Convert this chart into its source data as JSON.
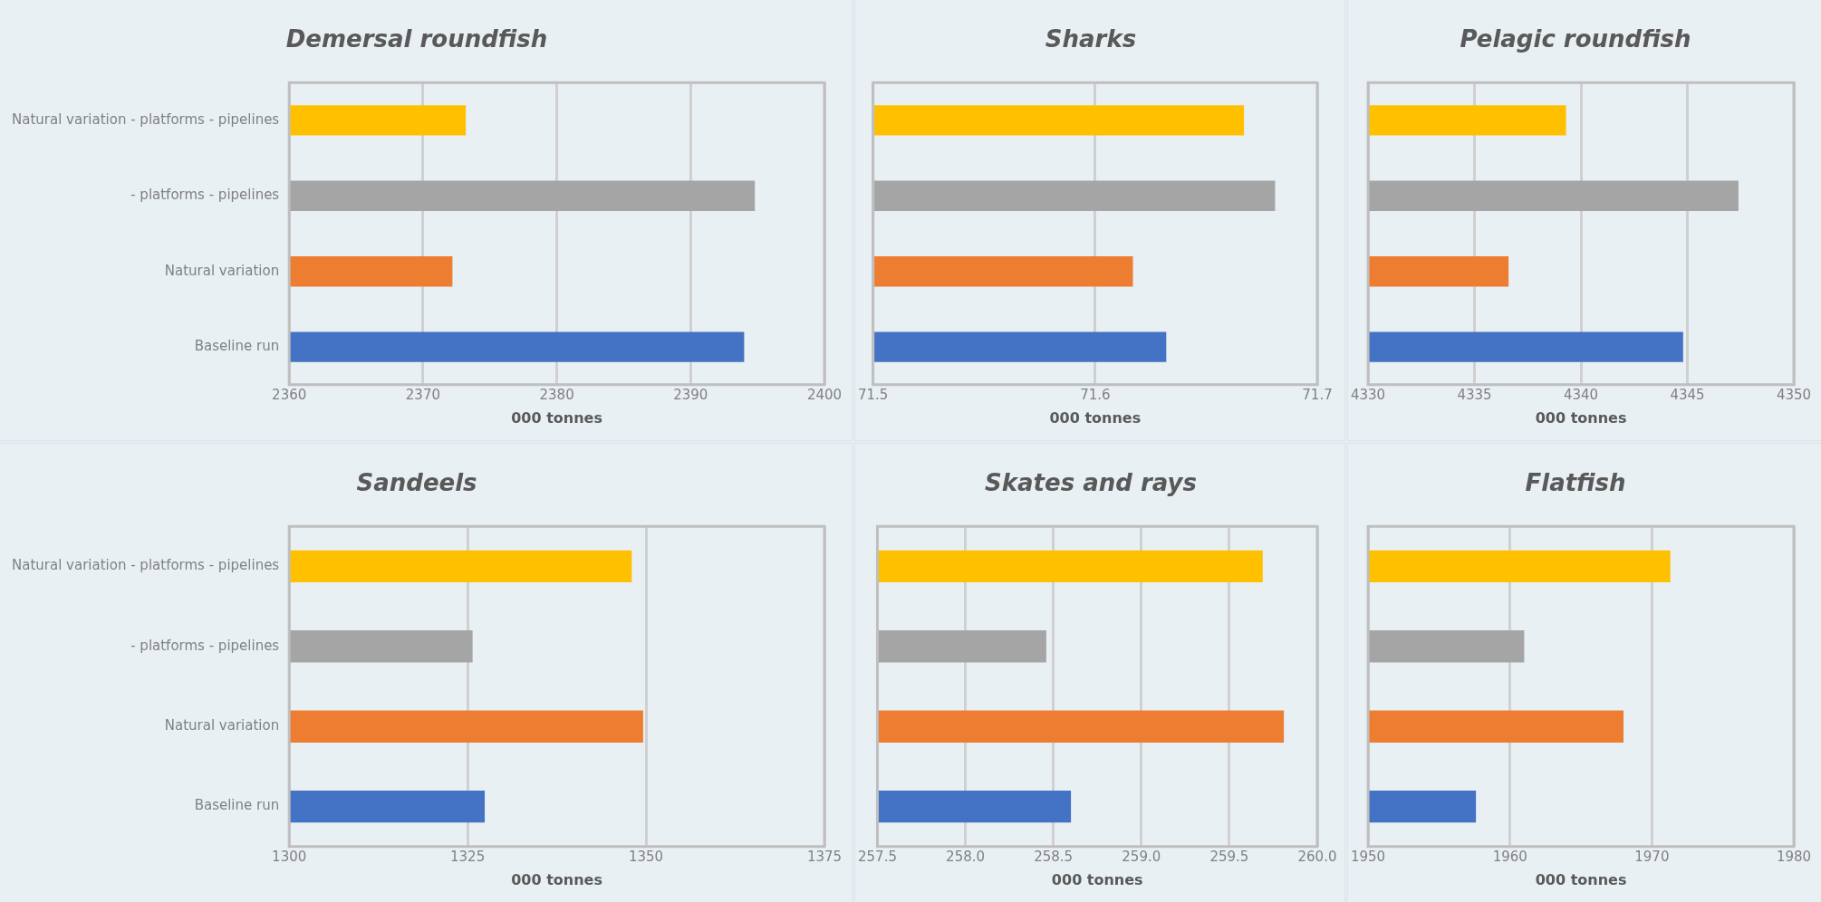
{
  "chart_data": [
    {
      "type": "bar",
      "orientation": "horizontal",
      "title": "Demersal roundfish",
      "xlabel": "000 tonnes",
      "categories": [
        "Natural variation - platforms - pipelines",
        "- platforms - pipelines",
        "Natural variation",
        "Baseline run"
      ],
      "values": [
        2373.2,
        2394.8,
        2372.2,
        2394
      ],
      "colors": [
        "#ffc000",
        "#a5a5a5",
        "#ed7d31",
        "#4472c4"
      ],
      "xlim": [
        2360,
        2400
      ],
      "xticks": [
        2360,
        2370,
        2380,
        2390,
        2400
      ],
      "grid": "x"
    },
    {
      "type": "bar",
      "orientation": "horizontal",
      "title": "Sharks",
      "xlabel": "000 tonnes",
      "categories": [
        null,
        null,
        null,
        null
      ],
      "values": [
        71.667,
        71.681,
        71.617,
        71.632
      ],
      "colors": [
        "#ffc000",
        "#a5a5a5",
        "#ed7d31",
        "#4472c4"
      ],
      "xlim": [
        71.5,
        71.7
      ],
      "xticks": [
        71.5,
        71.6,
        71.7
      ],
      "grid": "x",
      "tick_labels": "x"
    },
    {
      "type": "bar",
      "orientation": "horizontal",
      "title": "Pelagic roundfish",
      "xlabel": "000 tonnes",
      "categories": [
        null,
        null,
        null,
        null
      ],
      "values": [
        4339.3,
        4347.4,
        4336.6,
        4344.8
      ],
      "colors": [
        "#ffc000",
        "#a5a5a5",
        "#ed7d31",
        "#4472c4"
      ],
      "xlim": [
        4330,
        4350
      ],
      "xticks": [
        4330,
        4335,
        4340,
        4345,
        4350
      ],
      "grid": "x",
      "tick_labels": "x"
    },
    {
      "type": "bar",
      "orientation": "horizontal",
      "title": "Sandeels",
      "xlabel": "000 tonnes",
      "categories": [
        "Natural variation - platforms - pipelines",
        "- platforms - pipelines",
        "Natural variation",
        "Baseline run"
      ],
      "values": [
        1348,
        1325.7,
        1349.6,
        1327.4
      ],
      "colors": [
        "#ffc000",
        "#a5a5a5",
        "#ed7d31",
        "#4472c4"
      ],
      "xlim": [
        1300,
        1375
      ],
      "xticks": [
        1300,
        1325,
        1350,
        1375
      ],
      "grid": "x"
    },
    {
      "type": "bar",
      "orientation": "horizontal",
      "title": "Skates and rays",
      "xlabel": "000 tonnes",
      "categories": [
        null,
        null,
        null,
        null
      ],
      "values": [
        259.69,
        258.46,
        259.81,
        258.6
      ],
      "colors": [
        "#ffc000",
        "#a5a5a5",
        "#ed7d31",
        "#4472c4"
      ],
      "xlim": [
        257.5,
        260
      ],
      "xticks": [
        257.5,
        {
          "value": 258,
          "label": "258.0"
        },
        258.5,
        {
          "value": 259,
          "label": "259.0"
        },
        259.5,
        {
          "value": 260,
          "label": "260.0"
        }
      ],
      "grid": "x",
      "tick_labels": "x"
    },
    {
      "type": "bar",
      "orientation": "horizontal",
      "title": "Flatfish",
      "xlabel": "000 tonnes",
      "categories": [
        null,
        null,
        null,
        null
      ],
      "values": [
        1971.3,
        1961,
        1968,
        1957.6
      ],
      "colors": [
        "#ffc000",
        "#a5a5a5",
        "#ed7d31",
        "#4472c4"
      ],
      "xlim": [
        1950,
        1980
      ],
      "xticks": [
        1950,
        1960,
        1970,
        1980
      ],
      "grid": "x",
      "tick_labels": "x"
    }
  ]
}
